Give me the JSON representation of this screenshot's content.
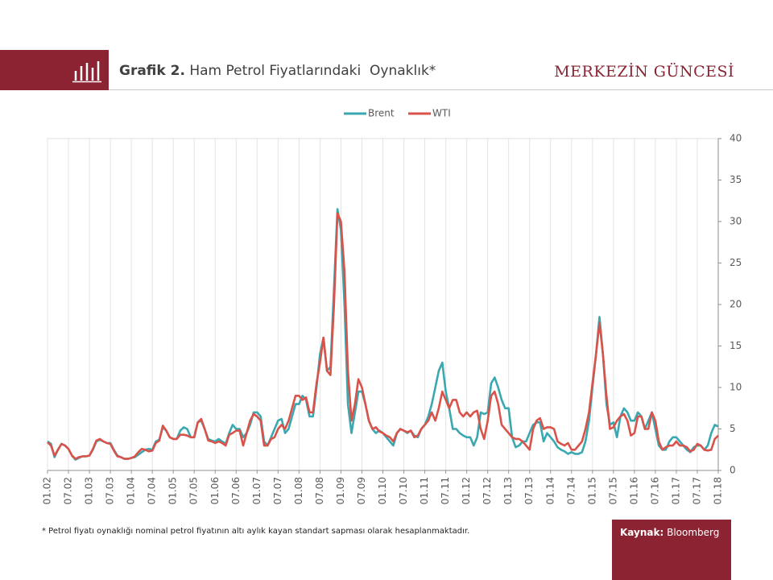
{
  "header": {
    "title_bold": "Grafik 2.",
    "title": "Ham Petrol Fiyatlarındaki  Oynaklık*",
    "brand": "MERKEZİN GÜNCESİ"
  },
  "chart_data": {
    "type": "line",
    "categories": [
      "01.02",
      null,
      null,
      null,
      null,
      null,
      "07.02",
      null,
      null,
      null,
      null,
      null,
      "01.03",
      null,
      null,
      null,
      null,
      null,
      "07.03",
      null,
      null,
      null,
      null,
      null,
      "01.04",
      null,
      null,
      null,
      null,
      null,
      "07.04",
      null,
      null,
      null,
      null,
      null,
      "01.05",
      null,
      null,
      null,
      null,
      null,
      "07.05",
      null,
      null,
      null,
      null,
      null,
      "01.06",
      null,
      null,
      null,
      null,
      null,
      "07.06",
      null,
      null,
      null,
      null,
      null,
      "01.07",
      null,
      null,
      null,
      null,
      null,
      "07.07",
      null,
      null,
      null,
      null,
      null,
      "01.08",
      null,
      null,
      null,
      null,
      null,
      "07.08",
      null,
      null,
      null,
      null,
      null,
      "01.09",
      null,
      null,
      null,
      null,
      null,
      "07.09",
      null,
      null,
      null,
      null,
      null,
      "01.10",
      null,
      null,
      null,
      null,
      null,
      "07.10",
      null,
      null,
      null,
      null,
      null,
      "01.11",
      null,
      null,
      null,
      null,
      null,
      "07.11",
      null,
      null,
      null,
      null,
      null,
      "01.12",
      null,
      null,
      null,
      null,
      null,
      "07.12",
      null,
      null,
      null,
      null,
      null,
      "01.13",
      null,
      null,
      null,
      null,
      null,
      "07.13",
      null,
      null,
      null,
      null,
      null,
      "01.14",
      null,
      null,
      null,
      null,
      null,
      "07.14",
      null,
      null,
      null,
      null,
      null,
      "01.15",
      null,
      null,
      null,
      null,
      null,
      "07.15",
      null,
      null,
      null,
      null,
      null,
      "01.16",
      null,
      null,
      null,
      null,
      null,
      "07.16",
      null,
      null,
      null,
      null,
      null,
      "01.17",
      null,
      null,
      null,
      null,
      null,
      "07.17",
      null,
      null,
      null,
      null,
      null,
      "01.18"
    ],
    "series": [
      {
        "name": "Brent",
        "color": "#3aa8b0",
        "values": [
          3.5,
          3.2,
          1.6,
          2.5,
          3.2,
          3.0,
          2.6,
          1.8,
          1.3,
          1.5,
          1.7,
          1.7,
          1.8,
          2.5,
          3.5,
          3.7,
          3.5,
          3.3,
          3.3,
          2.5,
          1.8,
          1.6,
          1.4,
          1.4,
          1.5,
          1.6,
          1.9,
          2.2,
          2.5,
          2.6,
          2.5,
          3.5,
          3.7,
          5.2,
          4.8,
          4.0,
          3.8,
          3.8,
          4.8,
          5.2,
          5.0,
          4.0,
          4.0,
          5.8,
          6.0,
          5.0,
          3.8,
          3.6,
          3.5,
          3.8,
          3.5,
          3.2,
          4.5,
          5.5,
          5.0,
          5.0,
          4.0,
          4.5,
          5.5,
          7.0,
          7.0,
          6.5,
          3.5,
          3.0,
          4.0,
          5.0,
          6.0,
          6.2,
          4.5,
          5.0,
          6.5,
          8.0,
          8.0,
          9.0,
          8.5,
          6.5,
          6.5,
          10,
          14,
          16,
          12,
          12.5,
          22,
          31.5,
          29,
          20,
          8,
          4.5,
          7,
          9.5,
          9.5,
          8,
          6,
          5,
          4.5,
          4.8,
          4.5,
          4.0,
          3.5,
          3.0,
          4.5,
          5.0,
          4.8,
          4.5,
          4.8,
          4.2,
          4.0,
          5.0,
          5.5,
          6.5,
          8,
          10,
          12,
          13,
          9.5,
          7.5,
          5,
          5,
          4.5,
          4.2,
          4.0,
          4.0,
          3.0,
          4.0,
          7.0,
          6.8,
          7,
          10.5,
          11.2,
          10,
          8.5,
          7.5,
          7.5,
          4,
          2.8,
          3,
          3.5,
          3.5,
          4.5,
          5.5,
          5.8,
          5.8,
          3.5,
          4.5,
          4,
          3.5,
          2.8,
          2.5,
          2.3,
          2,
          2.2,
          2,
          2,
          2.2,
          3.5,
          6,
          10,
          14,
          18.5,
          14,
          8,
          5.5,
          5.8,
          4,
          6.5,
          7.5,
          7,
          6,
          6,
          7,
          6.5,
          5,
          6,
          7,
          5,
          3,
          2.5,
          2.5,
          3.5,
          4,
          4,
          3.5,
          3,
          2.5,
          2.2,
          2.8,
          3,
          3,
          2.5,
          3,
          4.5,
          5.5,
          5.3
        ]
      },
      {
        "name": "WTI",
        "color": "#d9534a",
        "values": [
          3.4,
          3.0,
          1.8,
          2.5,
          3.2,
          3.0,
          2.6,
          1.8,
          1.4,
          1.6,
          1.7,
          1.7,
          1.8,
          2.6,
          3.6,
          3.8,
          3.5,
          3.3,
          3.2,
          2.4,
          1.7,
          1.6,
          1.4,
          1.4,
          1.5,
          1.7,
          2.2,
          2.6,
          2.5,
          2.3,
          2.4,
          3.3,
          3.6,
          5.4,
          4.8,
          4.0,
          3.8,
          3.8,
          4.3,
          4.3,
          4.2,
          4.0,
          4.0,
          5.8,
          6.2,
          5.0,
          3.6,
          3.5,
          3.3,
          3.5,
          3.3,
          3.0,
          4.3,
          4.5,
          4.8,
          4.8,
          3.0,
          4.5,
          6.0,
          6.8,
          6.5,
          6.0,
          3.0,
          3.0,
          3.8,
          4.0,
          5.0,
          5.5,
          5.0,
          6.0,
          7.5,
          9.0,
          9.0,
          8.5,
          8.8,
          7.0,
          7.0,
          10.5,
          13.0,
          16.0,
          12.0,
          11.5,
          20.0,
          31.0,
          30,
          24,
          12,
          6,
          8,
          11,
          10,
          8,
          6,
          5,
          5.2,
          4.7,
          4.5,
          4.2,
          4.0,
          3.5,
          4.5,
          5.0,
          4.8,
          4.6,
          4.8,
          4.0,
          4.2,
          5.0,
          5.5,
          6,
          7,
          6,
          7.5,
          9.5,
          8.5,
          7.5,
          8.5,
          8.5,
          7,
          6.5,
          7,
          6.5,
          7,
          7.2,
          5,
          3.8,
          6,
          9,
          9.5,
          8,
          5.5,
          5,
          4.5,
          4,
          3.8,
          3.8,
          3.5,
          3,
          2.5,
          5,
          6,
          6.3,
          5,
          5.2,
          5.2,
          5,
          3.5,
          3.2,
          3,
          3.3,
          2.5,
          2.5,
          3,
          3.5,
          5,
          7,
          10.5,
          14,
          17.8,
          14,
          9,
          5,
          5.2,
          6,
          6.5,
          6.8,
          6,
          4.2,
          4.5,
          6.5,
          6.5,
          5,
          5,
          7,
          6,
          3.5,
          2.5,
          2.8,
          3,
          3,
          3.5,
          3,
          3,
          2.8,
          2.3,
          2.5,
          3.2,
          3.0,
          2.5,
          2.4,
          2.5,
          3.8,
          4.2
        ]
      }
    ],
    "ylim": [
      0,
      40
    ],
    "yticks": [
      0,
      5,
      10,
      15,
      20,
      25,
      30,
      35,
      40
    ],
    "y_axis_side": "right",
    "grid": "x",
    "legend": "top"
  },
  "footnote": "* Petrol fiyatı oynaklığı nominal petrol fiyatının altı aylık kayan standart sapması olarak hesaplanmaktadır.",
  "source": {
    "label": "Kaynak:",
    "value": "Bloomberg"
  }
}
